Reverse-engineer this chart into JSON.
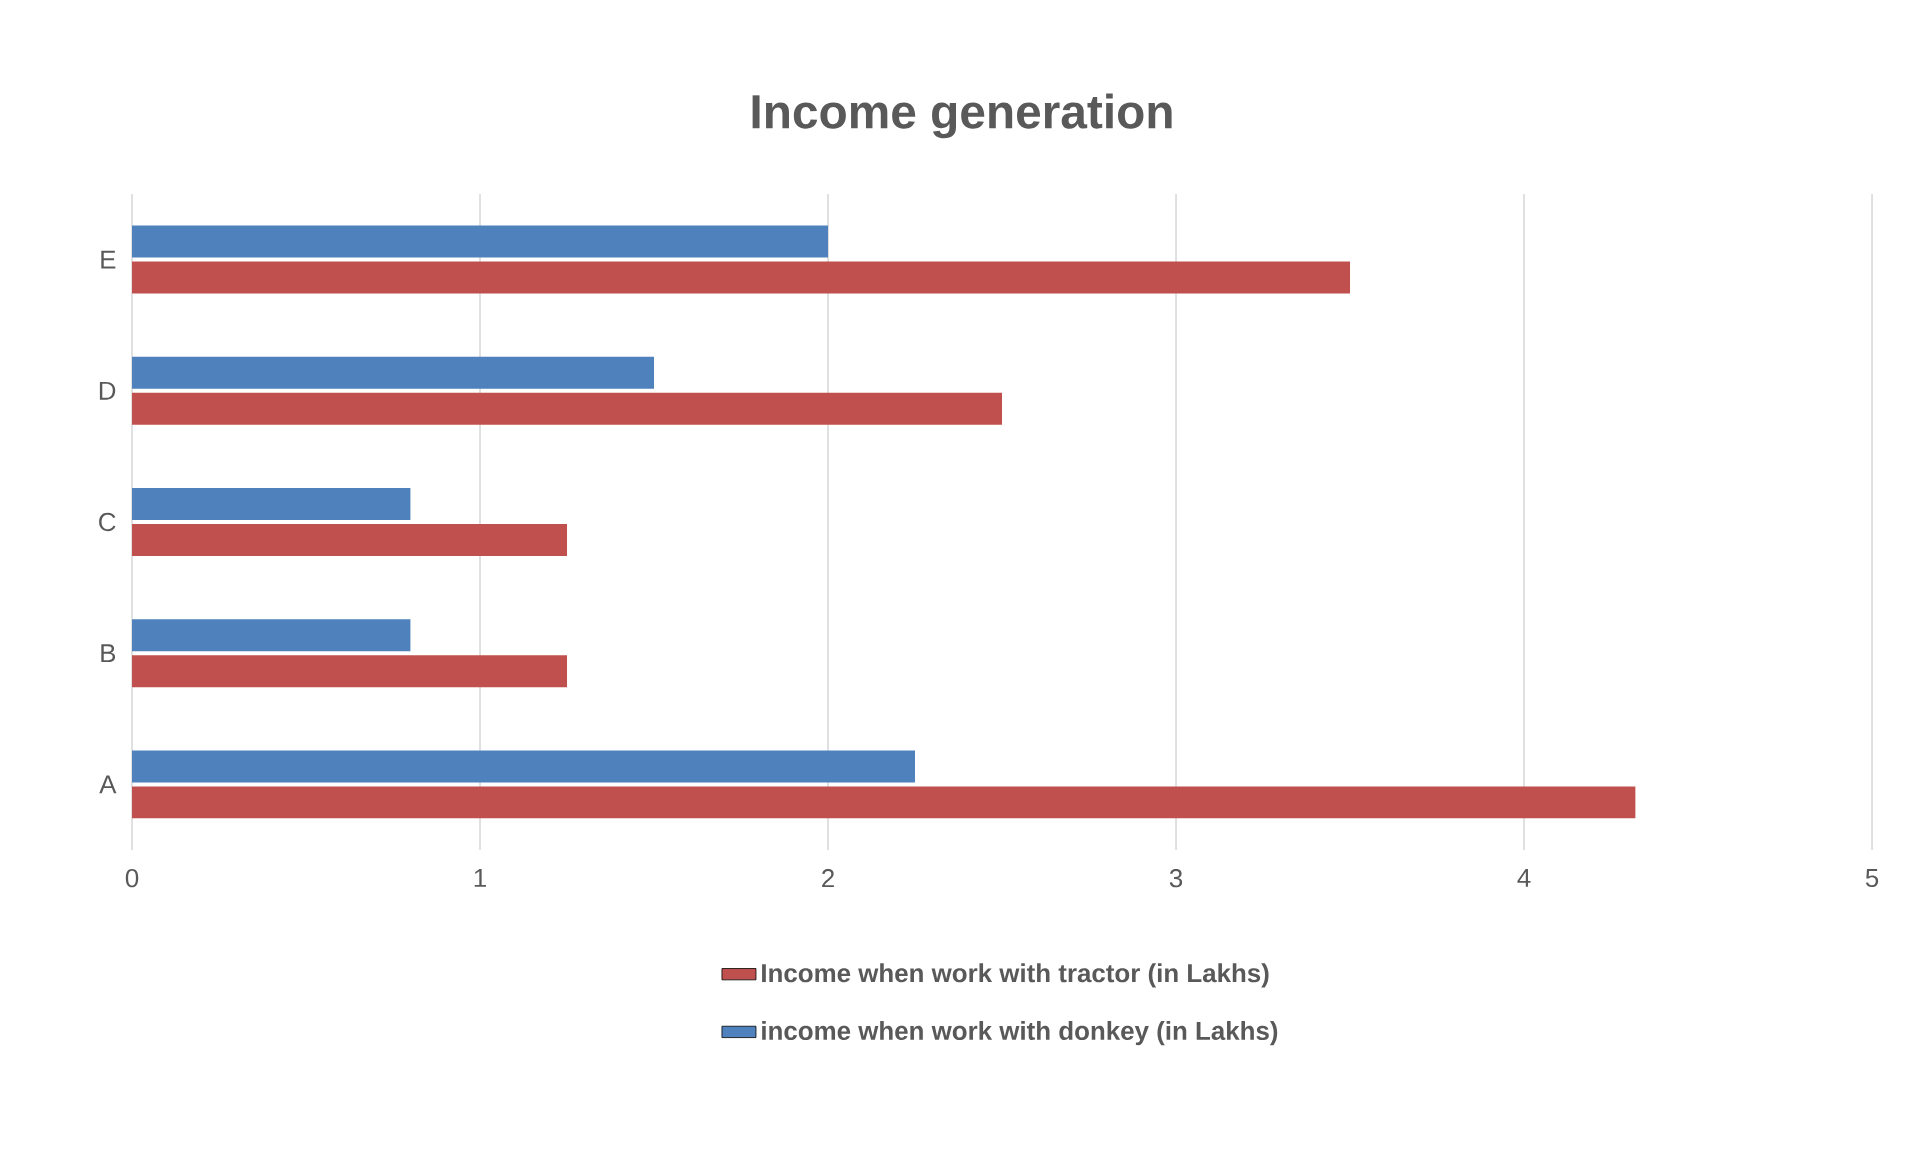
{
  "chart_data": {
    "type": "bar",
    "orientation": "horizontal",
    "title": "Income generation",
    "categories": [
      "E",
      "D",
      "C",
      "B",
      "A"
    ],
    "series": [
      {
        "name": "Income when work with tractor (in Lakhs)",
        "color": "#c0504d",
        "values": [
          3.5,
          2.5,
          1.25,
          1.25,
          4.32
        ]
      },
      {
        "name": "income when work with donkey (in Lakhs)",
        "color": "#4f81bd",
        "values": [
          2.0,
          1.5,
          0.8,
          0.8,
          2.25
        ]
      }
    ],
    "xlim": [
      0,
      5
    ],
    "xticks": [
      0,
      1,
      2,
      3,
      4,
      5
    ],
    "grid": "x",
    "legend": "bottom"
  }
}
